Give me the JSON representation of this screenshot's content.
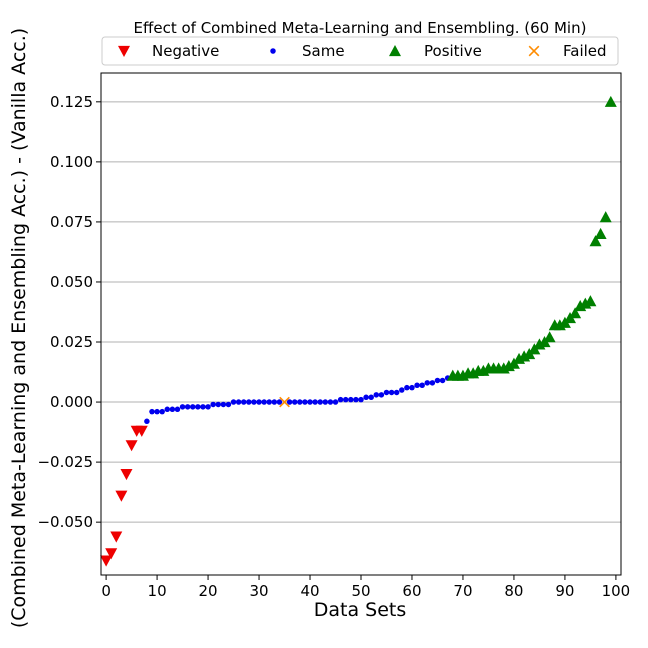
{
  "chart_data": {
    "type": "scatter",
    "title": "Effect of Combined Meta-Learning and Ensembling. (60 Min)",
    "xlabel": "Data Sets",
    "ylabel": "(Combined Meta-Learning and Ensembling Acc.) - (Vanilla Acc.)",
    "xlim": [
      -1,
      101
    ],
    "ylim": [
      -0.072,
      0.137
    ],
    "xticks": [
      0,
      10,
      20,
      30,
      40,
      50,
      60,
      70,
      80,
      90,
      100
    ],
    "xtick_labels": [
      "0",
      "10",
      "20",
      "30",
      "40",
      "50",
      "60",
      "70",
      "80",
      "90",
      "100"
    ],
    "yticks": [
      -0.05,
      -0.025,
      0.0,
      0.025,
      0.05,
      0.075,
      0.1,
      0.125
    ],
    "ytick_labels": [
      "−0.050",
      "−0.025",
      "0.000",
      "0.025",
      "0.050",
      "0.075",
      "0.100",
      "0.125"
    ],
    "grid": "horizontal",
    "legend_position": "top",
    "series": [
      {
        "name": "Negative",
        "marker": "triangle-down",
        "color": "#ee0000",
        "x": [
          0,
          1,
          2,
          3,
          4,
          5,
          6,
          7
        ],
        "y": [
          -0.066,
          -0.063,
          -0.056,
          -0.039,
          -0.03,
          -0.018,
          -0.012,
          -0.012
        ]
      },
      {
        "name": "Same",
        "marker": "circle",
        "color": "#0000ee",
        "x": [
          8,
          9,
          10,
          11,
          12,
          13,
          14,
          15,
          16,
          17,
          18,
          19,
          20,
          21,
          22,
          23,
          24,
          25,
          26,
          27,
          28,
          29,
          30,
          31,
          32,
          33,
          34,
          36,
          37,
          38,
          39,
          40,
          41,
          42,
          43,
          44,
          45,
          46,
          47,
          48,
          49,
          50,
          51,
          52,
          53,
          54,
          55,
          56,
          57,
          58,
          59,
          60,
          61,
          62,
          63,
          64,
          65,
          66,
          67
        ],
        "y": [
          -0.008,
          -0.004,
          -0.004,
          -0.004,
          -0.003,
          -0.003,
          -0.003,
          -0.002,
          -0.002,
          -0.002,
          -0.002,
          -0.002,
          -0.002,
          -0.001,
          -0.001,
          -0.001,
          -0.001,
          0.0,
          0.0,
          0.0,
          0.0,
          0.0,
          0.0,
          0.0,
          0.0,
          0.0,
          0.0,
          0.0,
          0.0,
          0.0,
          0.0,
          0.0,
          0.0,
          0.0,
          0.0,
          0.0,
          0.0,
          0.001,
          0.001,
          0.001,
          0.001,
          0.001,
          0.002,
          0.002,
          0.003,
          0.003,
          0.004,
          0.004,
          0.004,
          0.005,
          0.006,
          0.006,
          0.007,
          0.007,
          0.008,
          0.008,
          0.009,
          0.009,
          0.01
        ]
      },
      {
        "name": "Positive",
        "marker": "triangle-up",
        "color": "#008000",
        "x": [
          68,
          69,
          70,
          71,
          72,
          73,
          74,
          75,
          76,
          77,
          78,
          79,
          80,
          81,
          82,
          83,
          84,
          85,
          86,
          87,
          88,
          89,
          90,
          91,
          92,
          93,
          94,
          95,
          96,
          97,
          98,
          99
        ],
        "y": [
          0.011,
          0.011,
          0.011,
          0.012,
          0.012,
          0.013,
          0.013,
          0.014,
          0.014,
          0.014,
          0.014,
          0.015,
          0.016,
          0.018,
          0.019,
          0.02,
          0.022,
          0.024,
          0.025,
          0.027,
          0.032,
          0.032,
          0.033,
          0.035,
          0.037,
          0.04,
          0.041,
          0.042,
          0.067,
          0.07,
          0.077,
          0.125
        ]
      },
      {
        "name": "Failed",
        "marker": "x",
        "color": "#ff8c00",
        "x": [
          35
        ],
        "y": [
          0.0
        ]
      }
    ]
  }
}
